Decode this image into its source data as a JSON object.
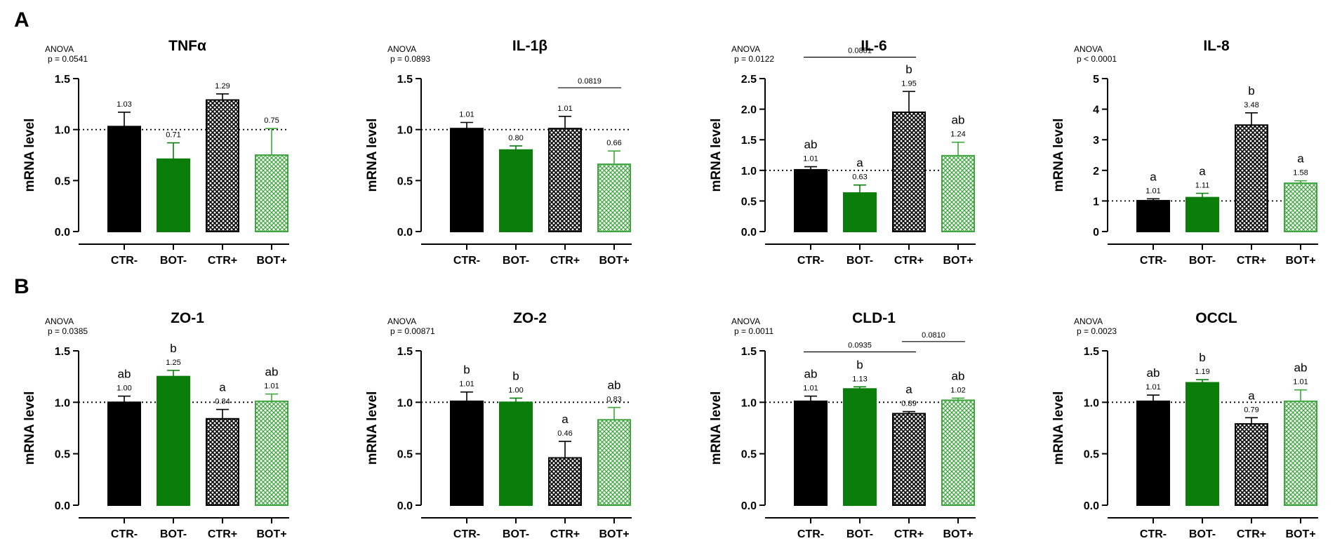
{
  "figure": {
    "panels": [
      {
        "letter": "A"
      },
      {
        "letter": "B"
      }
    ],
    "colors": {
      "ctr": "#000000",
      "bot": "#0a7d0a",
      "bot_light": "#3fa63f",
      "axis": "#000000"
    },
    "reference_line_y": 1.0,
    "ylabel": "mRNA level"
  },
  "chart_data": [
    {
      "type": "bar",
      "panel": "A",
      "title": "TNFα",
      "anova_label": "ANOVA",
      "anova_p": "p = 0.0541",
      "categories": [
        "CTR-",
        "BOT-",
        "CTR+",
        "BOT+"
      ],
      "values": [
        1.03,
        0.71,
        1.29,
        0.75
      ],
      "value_labels": [
        "1.03",
        "0.71",
        "1.29",
        "0.75"
      ],
      "errors": [
        0.14,
        0.16,
        0.06,
        0.26
      ],
      "letters": [
        "",
        "",
        "",
        ""
      ],
      "ylabel": "mRNA level",
      "ylim": [
        0,
        1.5
      ],
      "yticks": [
        0,
        0.5,
        1.0,
        1.5
      ],
      "ytick_labels": [
        "0.0",
        "0.5",
        "1.0",
        "1.5"
      ],
      "comparisons": []
    },
    {
      "type": "bar",
      "panel": "A",
      "title": "IL-1β",
      "anova_label": "ANOVA",
      "anova_p": "p  = 0.0893",
      "categories": [
        "CTR-",
        "BOT-",
        "CTR+",
        "BOT+"
      ],
      "values": [
        1.01,
        0.8,
        1.01,
        0.66
      ],
      "value_labels": [
        "1.01",
        "0.80",
        "1.01",
        "0.66"
      ],
      "errors": [
        0.06,
        0.04,
        0.12,
        0.13
      ],
      "letters": [
        "",
        "",
        "",
        ""
      ],
      "ylabel": "mRNA level",
      "ylim": [
        0,
        1.5
      ],
      "yticks": [
        0,
        0.5,
        1.0,
        1.5
      ],
      "ytick_labels": [
        "0.0",
        "0.5",
        "1.0",
        "1.5"
      ],
      "comparisons": [
        {
          "from": 2,
          "to": 3,
          "y": 1.41,
          "label": "0.0819"
        }
      ]
    },
    {
      "type": "bar",
      "panel": "A",
      "title": "IL-6",
      "anova_label": "ANOVA",
      "anova_p": "p = 0.0122",
      "categories": [
        "CTR-",
        "BOT-",
        "CTR+",
        "BOT+"
      ],
      "values": [
        1.01,
        0.63,
        1.95,
        1.24
      ],
      "value_labels": [
        "1.01",
        "0.63",
        "1.95",
        "1.24"
      ],
      "errors": [
        0.05,
        0.13,
        0.34,
        0.22
      ],
      "letters": [
        "ab",
        "a",
        "b",
        "ab"
      ],
      "ylabel": "mRNA level",
      "ylim": [
        0,
        2.5
      ],
      "yticks": [
        0,
        0.5,
        1.0,
        1.5,
        2.0,
        2.5
      ],
      "ytick_labels": [
        "0.0",
        "0.5",
        "1.0",
        "1.5",
        "2.0",
        "2.5"
      ],
      "comparisons": [
        {
          "from": 0,
          "to": 2,
          "y": 2.85,
          "label": "0.0881"
        }
      ]
    },
    {
      "type": "bar",
      "panel": "A",
      "title": "IL-8",
      "anova_label": "ANOVA",
      "anova_p": "p < 0.0001",
      "categories": [
        "CTR-",
        "BOT-",
        "CTR+",
        "BOT+"
      ],
      "values": [
        1.01,
        1.11,
        3.48,
        1.58
      ],
      "value_labels": [
        "1.01",
        "1.11",
        "3.48",
        "1.58"
      ],
      "errors": [
        0.06,
        0.14,
        0.4,
        0.08
      ],
      "letters": [
        "a",
        "a",
        "b",
        "a"
      ],
      "ylabel": "mRNA level",
      "ylim": [
        0,
        5
      ],
      "yticks": [
        0,
        1,
        2,
        3,
        4,
        5
      ],
      "ytick_labels": [
        "0",
        "1",
        "2",
        "3",
        "4",
        "5"
      ],
      "comparisons": []
    },
    {
      "type": "bar",
      "panel": "B",
      "title": "ZO-1",
      "anova_label": "ANOVA",
      "anova_p": "p  = 0.0385",
      "categories": [
        "CTR-",
        "BOT-",
        "CTR+",
        "BOT+"
      ],
      "values": [
        1.0,
        1.25,
        0.84,
        1.01
      ],
      "value_labels": [
        "1.00",
        "1.25",
        "0.84",
        "1.01"
      ],
      "errors": [
        0.06,
        0.06,
        0.09,
        0.07
      ],
      "letters": [
        "ab",
        "b",
        "a",
        "ab"
      ],
      "ylabel": "mRNA level",
      "ylim": [
        0,
        1.5
      ],
      "yticks": [
        0,
        0.5,
        1.0,
        1.5
      ],
      "ytick_labels": [
        "0.0",
        "0.5",
        "1.0",
        "1.5"
      ],
      "comparisons": []
    },
    {
      "type": "bar",
      "panel": "B",
      "title": "ZO-2",
      "anova_label": "ANOVA",
      "anova_p": "p = 0.00871",
      "categories": [
        "CTR-",
        "BOT-",
        "CTR+",
        "BOT+"
      ],
      "values": [
        1.01,
        1.0,
        0.46,
        0.83
      ],
      "value_labels": [
        "1.01",
        "1.00",
        "0.46",
        "0.83"
      ],
      "errors": [
        0.09,
        0.04,
        0.16,
        0.12
      ],
      "letters": [
        "b",
        "b",
        "a",
        "ab"
      ],
      "ylabel": "mRNA level",
      "ylim": [
        0,
        1.5
      ],
      "yticks": [
        0,
        0.5,
        1.0,
        1.5
      ],
      "ytick_labels": [
        "0.0",
        "0.5",
        "1.0",
        "1.5"
      ],
      "comparisons": []
    },
    {
      "type": "bar",
      "panel": "B",
      "title": "CLD-1",
      "anova_label": "ANOVA",
      "anova_p": "p = 0.0011",
      "categories": [
        "CTR-",
        "BOT-",
        "CTR+",
        "BOT+"
      ],
      "values": [
        1.01,
        1.13,
        0.89,
        1.02
      ],
      "value_labels": [
        "1.01",
        "1.13",
        "0.89",
        "1.02"
      ],
      "errors": [
        0.05,
        0.02,
        0.02,
        0.02
      ],
      "letters": [
        "ab",
        "b",
        "a",
        "ab"
      ],
      "ylabel": "mRNA level",
      "ylim": [
        0,
        1.5
      ],
      "yticks": [
        0,
        0.5,
        1.0,
        1.5
      ],
      "ytick_labels": [
        "0.0",
        "0.5",
        "1.0",
        "1.5"
      ],
      "comparisons": [
        {
          "from": 0,
          "to": 2,
          "y": 1.49,
          "label": "0.0935"
        },
        {
          "from": 2,
          "to": 3,
          "y": 1.59,
          "label": "0.0810"
        }
      ]
    },
    {
      "type": "bar",
      "panel": "B",
      "title": "OCCL",
      "anova_label": "ANOVA",
      "anova_p": "p = 0.0023",
      "categories": [
        "CTR-",
        "BOT-",
        "CTR+",
        "BOT+"
      ],
      "values": [
        1.01,
        1.19,
        0.79,
        1.01
      ],
      "value_labels": [
        "1.01",
        "1.19",
        "0.79",
        "1.01"
      ],
      "errors": [
        0.06,
        0.03,
        0.06,
        0.11
      ],
      "letters": [
        "ab",
        "b",
        "a",
        "ab"
      ],
      "ylabel": "mRNA level",
      "ylim": [
        0,
        1.5
      ],
      "yticks": [
        0,
        0.5,
        1.0,
        1.5
      ],
      "ytick_labels": [
        "0.0",
        "0.5",
        "1.0",
        "1.5"
      ],
      "comparisons": []
    }
  ]
}
